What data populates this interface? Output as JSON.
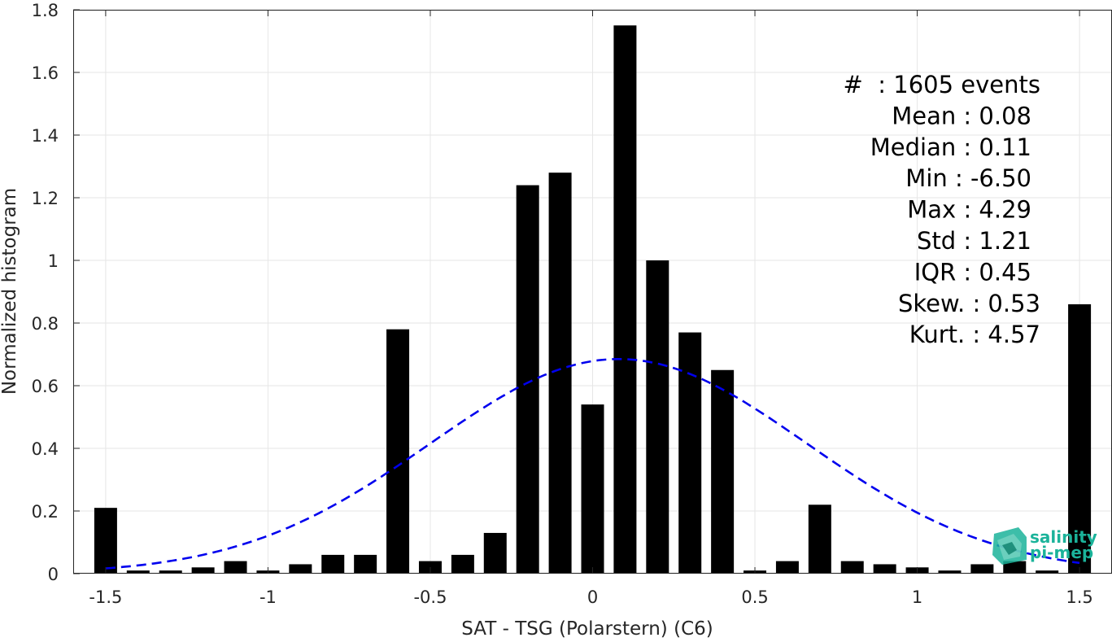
{
  "chart_data": {
    "type": "bar",
    "xlabel": "SAT - TSG (Polarstern) (C6)",
    "ylabel": "Normalized histogram",
    "xlim": [
      -1.6,
      1.6
    ],
    "ylim": [
      0,
      1.8
    ],
    "x_ticks": [
      -1.5,
      -1,
      -0.5,
      0,
      0.5,
      1,
      1.5
    ],
    "x_tick_labels": [
      "-1.5",
      "-1",
      "-0.5",
      "0",
      "0.5",
      "1",
      "1.5"
    ],
    "y_ticks": [
      0,
      0.2,
      0.4,
      0.6,
      0.8,
      1,
      1.2,
      1.4,
      1.6,
      1.8
    ],
    "y_tick_labels": [
      "0",
      "0.2",
      "0.4",
      "0.6",
      "0.8",
      "1",
      "1.2",
      "1.4",
      "1.6",
      "1.8"
    ],
    "grid": true,
    "bar_color": "#000000",
    "bars": {
      "x": [
        -1.5,
        -1.4,
        -1.3,
        -1.2,
        -1.1,
        -1.0,
        -0.9,
        -0.8,
        -0.7,
        -0.6,
        -0.5,
        -0.4,
        -0.3,
        -0.2,
        -0.1,
        0.0,
        0.1,
        0.2,
        0.3,
        0.4,
        0.5,
        0.6,
        0.7,
        0.8,
        0.9,
        1.0,
        1.1,
        1.2,
        1.3,
        1.4,
        1.5
      ],
      "values": [
        0.21,
        0.01,
        0.01,
        0.02,
        0.04,
        0.01,
        0.03,
        0.06,
        0.06,
        0.78,
        0.04,
        0.06,
        0.13,
        1.24,
        1.28,
        0.54,
        1.75,
        1.0,
        0.77,
        0.65,
        0.01,
        0.04,
        0.22,
        0.04,
        0.03,
        0.02,
        0.01,
        0.03,
        0.04,
        0.01,
        0.86
      ]
    },
    "fit_curve": {
      "style": "dashed",
      "color": "#0000ee",
      "mean": 0.08,
      "std": 0.58,
      "peak": 0.685,
      "x_range": [
        -1.5,
        1.5
      ]
    },
    "stats_lines": [
      "#  : 1605 events",
      "Mean : 0.08",
      "Median : 0.11",
      "Min : -6.50",
      "Max : 4.29",
      "Std : 1.21",
      "IQR : 0.45",
      "Skew. : 0.53",
      "Kurt. : 4.57"
    ]
  },
  "logo": {
    "line1": "salinity",
    "line2": "pi-mep",
    "color": "#1bb39a"
  }
}
